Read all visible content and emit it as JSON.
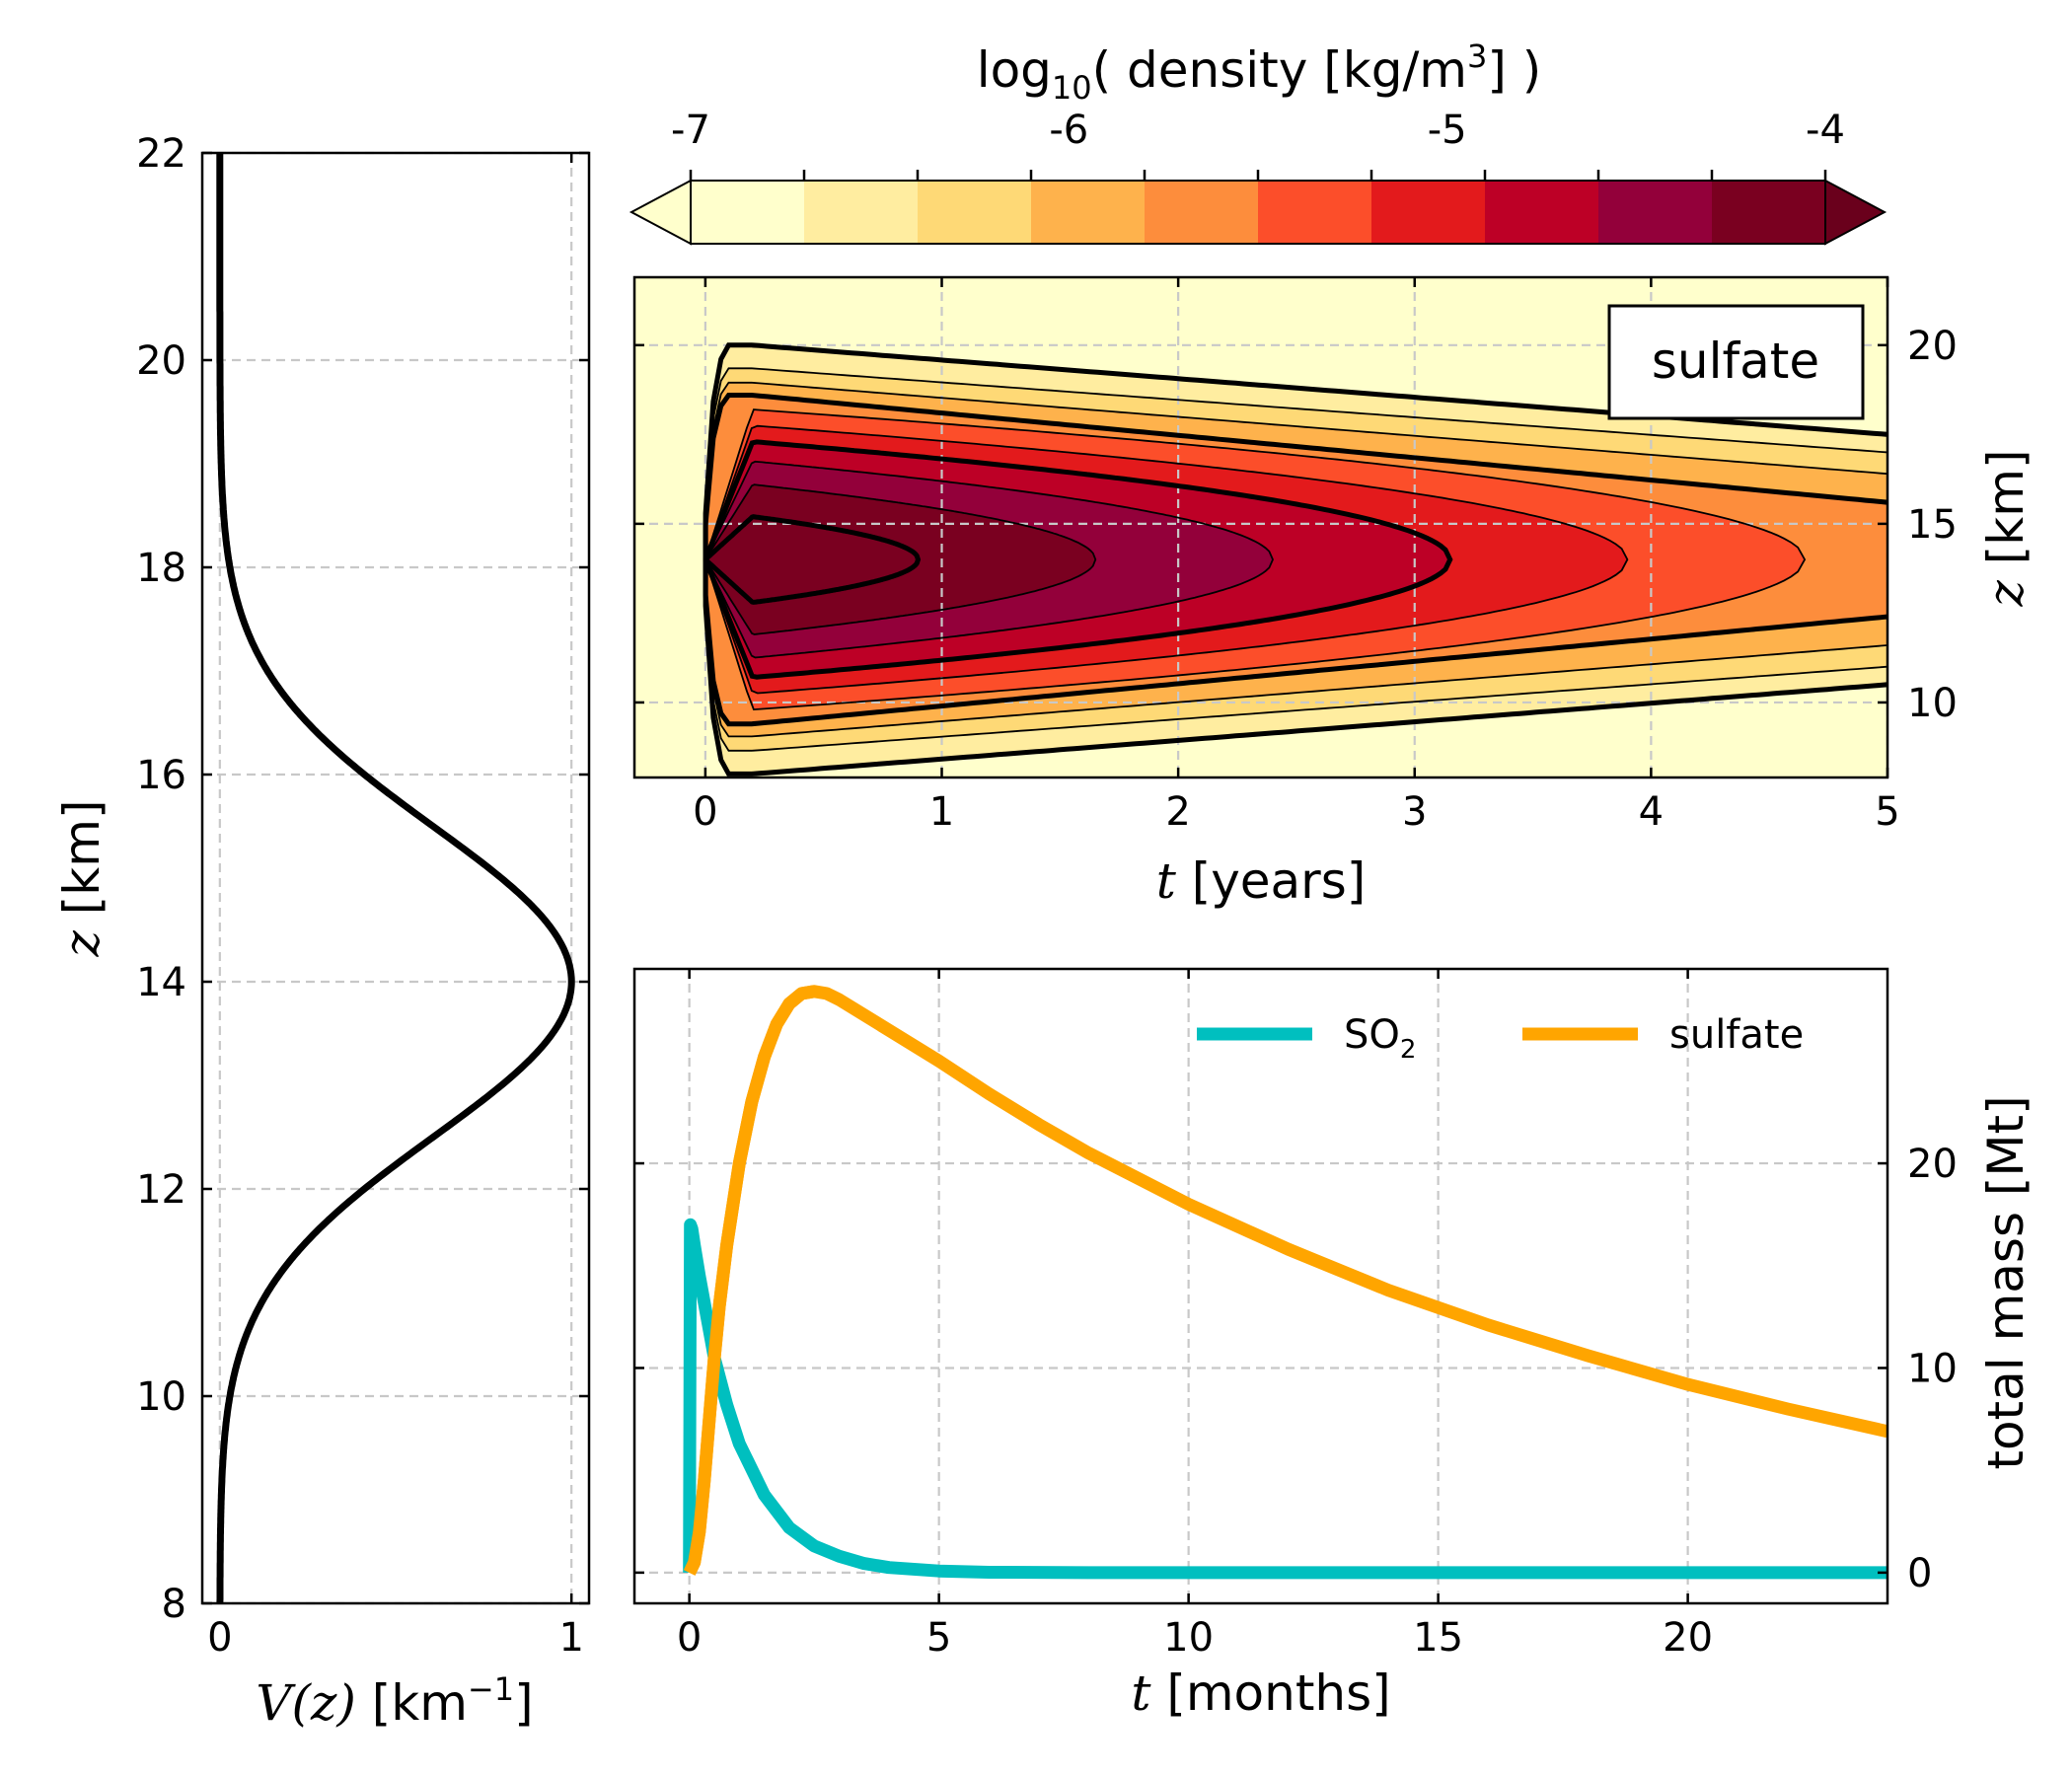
{
  "chart_data": [
    {
      "type": "line",
      "panel": "left",
      "xlabel_var": "V",
      "xlabel_arg": "(z)",
      "xlabel_units": "[km",
      "xlabel_sup": "−1",
      "xlabel_close": "]",
      "ylabel_var": "z",
      "ylabel_units": "[km]",
      "xlim": [
        -0.05,
        1.05
      ],
      "ylim": [
        8,
        22
      ],
      "xticks": [
        0,
        1
      ],
      "yticks": [
        8,
        10,
        12,
        14,
        16,
        18,
        20,
        22
      ],
      "grid": true,
      "profile": {
        "shape": "gaussian",
        "mean_km": 14,
        "sigma_km": 1.5,
        "peak": 1.0
      },
      "series": [
        {
          "color": "#000000",
          "points": [
            [
              0.0,
              8.0
            ],
            [
              0.0004,
              8.5
            ],
            [
              0.003,
              9.0
            ],
            [
              0.009,
              9.5
            ],
            [
              0.022,
              10.0
            ],
            [
              0.049,
              10.5
            ],
            [
              0.098,
              11.0
            ],
            [
              0.178,
              11.5
            ],
            [
              0.288,
              12.0
            ],
            [
              0.43,
              12.5
            ],
            [
              0.607,
              13.0
            ],
            [
              0.801,
              13.5
            ],
            [
              0.945,
              13.8
            ],
            [
              1.0,
              14.0
            ],
            [
              0.945,
              14.2
            ],
            [
              0.801,
              14.5
            ],
            [
              0.607,
              15.0
            ],
            [
              0.43,
              15.5
            ],
            [
              0.288,
              16.0
            ],
            [
              0.178,
              16.5
            ],
            [
              0.098,
              17.0
            ],
            [
              0.049,
              17.5
            ],
            [
              0.022,
              18.0
            ],
            [
              0.009,
              18.5
            ],
            [
              0.003,
              19.0
            ],
            [
              0.0004,
              19.5
            ],
            [
              0.0,
              20.0
            ],
            [
              0.0,
              22.0
            ]
          ]
        }
      ]
    },
    {
      "type": "heatmap",
      "panel": "top-right",
      "colorbar_label_prefix": "log",
      "colorbar_label_sub": "10",
      "colorbar_label_mid": "( density [kg/m",
      "colorbar_label_sup": "3",
      "colorbar_label_end": "] )",
      "colorbar_range": [
        -7,
        -4
      ],
      "colorbar_ticks": [
        -7,
        -6,
        -5,
        -4
      ],
      "colorbar_levels": [
        "#ffffcc",
        "#ffeda0",
        "#fed976",
        "#feb24c",
        "#fd8d3c",
        "#fc4e2a",
        "#e31a1c",
        "#bd0026",
        "#93003a",
        "#7a0020"
      ],
      "colorbar_extend": "both",
      "xlabel_var": "t",
      "xlabel_units": "[years]",
      "ylabel_var": "z",
      "ylabel_units": "[km]",
      "xlim": [
        -0.3,
        5
      ],
      "ylim": [
        7.9,
        21.9
      ],
      "xticks": [
        0,
        1,
        2,
        3,
        4,
        5
      ],
      "yticks": [
        10,
        15,
        20
      ],
      "grid": true,
      "annotation": "sulfate",
      "contour_envelope": {
        "center_km": 14,
        "t_peak_years": 0.2
      },
      "contours": [
        {
          "value": -4.0,
          "tip_years": 0.9,
          "halfwidth_km": 1.2,
          "bold": true
        },
        {
          "value": -4.33,
          "tip_years": 1.65,
          "halfwidth_km": 2.1,
          "bold": false
        },
        {
          "value": -4.67,
          "tip_years": 2.4,
          "halfwidth_km": 2.75,
          "bold": false
        },
        {
          "value": -5.0,
          "tip_years": 3.15,
          "halfwidth_km": 3.3,
          "bold": true
        },
        {
          "value": -5.33,
          "tip_years": 3.9,
          "halfwidth_km": 3.75,
          "bold": false
        },
        {
          "value": -5.67,
          "tip_years": 4.65,
          "halfwidth_km": 4.2,
          "bold": false
        },
        {
          "value": -6.0,
          "halfwidth_km": 4.6,
          "halfwidth_at_5y_km": 1.6,
          "bold": true
        },
        {
          "value": -6.33,
          "halfwidth_km": 4.95,
          "halfwidth_at_5y_km": 2.4,
          "bold": false
        },
        {
          "value": -6.67,
          "halfwidth_km": 5.35,
          "halfwidth_at_5y_km": 3.0,
          "bold": false
        },
        {
          "value": -7.0,
          "halfwidth_km": 6.0,
          "halfwidth_at_5y_km": 3.5,
          "bold": true
        }
      ]
    },
    {
      "type": "line",
      "panel": "bottom-right",
      "xlabel_var": "t",
      "xlabel_units": "[months]",
      "ylabel": "total mass [Mt]",
      "xlim": [
        -1.1,
        24
      ],
      "ylim": [
        -1.5,
        29.5
      ],
      "xticks": [
        0,
        5,
        10,
        15,
        20
      ],
      "yticks": [
        0,
        10,
        20
      ],
      "grid": true,
      "legend_position": "top-right",
      "series": [
        {
          "name": "SO",
          "name_sub": "2",
          "color": "#00bfbf",
          "points": [
            [
              0,
              0
            ],
            [
              0.02,
              17
            ],
            [
              0.05,
              16.8
            ],
            [
              0.1,
              16
            ],
            [
              0.2,
              14.5
            ],
            [
              0.35,
              12.5
            ],
            [
              0.5,
              10.5
            ],
            [
              0.75,
              8.2
            ],
            [
              1.0,
              6.3
            ],
            [
              1.5,
              3.8
            ],
            [
              2.0,
              2.2
            ],
            [
              2.5,
              1.3
            ],
            [
              3.0,
              0.8
            ],
            [
              3.5,
              0.45
            ],
            [
              4.0,
              0.25
            ],
            [
              5.0,
              0.08
            ],
            [
              6.0,
              0.02
            ],
            [
              8.0,
              0
            ],
            [
              24,
              0
            ]
          ]
        },
        {
          "name": "sulfate",
          "color": "#ffa500",
          "points": [
            [
              0,
              0
            ],
            [
              0.1,
              0.5
            ],
            [
              0.2,
              2
            ],
            [
              0.3,
              4.5
            ],
            [
              0.4,
              7.5
            ],
            [
              0.5,
              10.5
            ],
            [
              0.6,
              13
            ],
            [
              0.75,
              16
            ],
            [
              1.0,
              20
            ],
            [
              1.25,
              23
            ],
            [
              1.5,
              25.2
            ],
            [
              1.75,
              26.8
            ],
            [
              2.0,
              27.8
            ],
            [
              2.25,
              28.3
            ],
            [
              2.5,
              28.4
            ],
            [
              2.75,
              28.3
            ],
            [
              3.0,
              28.0
            ],
            [
              4.0,
              26.5
            ],
            [
              5.0,
              25.0
            ],
            [
              6.0,
              23.4
            ],
            [
              7.0,
              21.9
            ],
            [
              8.0,
              20.5
            ],
            [
              10.0,
              18.0
            ],
            [
              12.0,
              15.8
            ],
            [
              14.0,
              13.8
            ],
            [
              16.0,
              12.1
            ],
            [
              18.0,
              10.6
            ],
            [
              20.0,
              9.2
            ],
            [
              22.0,
              8.0
            ],
            [
              24.0,
              6.9
            ]
          ]
        }
      ]
    }
  ]
}
